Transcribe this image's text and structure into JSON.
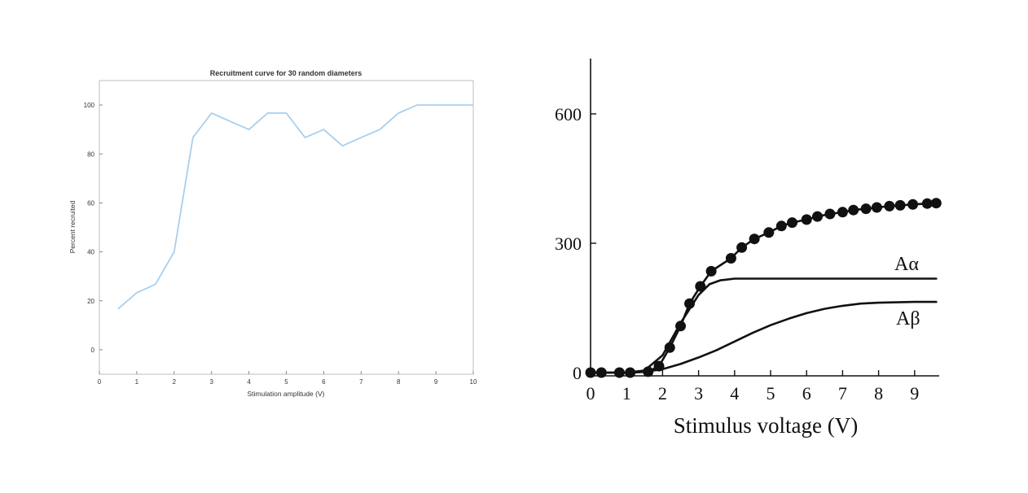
{
  "chart_data": [
    {
      "type": "line",
      "title": "Recruitment curve for 30 random diameters",
      "xlabel": "Stimulation amplitude (V)",
      "ylabel": "Percent recruited",
      "xlim": [
        0,
        10
      ],
      "ylim": [
        -10,
        110
      ],
      "xticks": [
        0,
        1,
        2,
        3,
        4,
        5,
        6,
        7,
        8,
        9,
        10
      ],
      "yticks": [
        0,
        20,
        40,
        60,
        80,
        100
      ],
      "grid": false,
      "colors": {
        "line": "#a8cfee",
        "axis": "#8a8a8a",
        "frame": "#bdbdbd"
      },
      "series": [
        {
          "x": [
            0.5,
            1,
            1.5,
            2,
            2.5,
            3,
            3.5,
            4,
            4.5,
            5,
            5.5,
            6,
            6.5,
            7,
            7.5,
            8,
            8.5,
            9,
            9.5,
            10
          ],
          "y": [
            16.7,
            23.3,
            26.7,
            40,
            86.7,
            96.7,
            93.3,
            90,
            96.7,
            96.7,
            86.7,
            90,
            83.3,
            86.7,
            90,
            96.7,
            100,
            100,
            100,
            100
          ]
        }
      ]
    },
    {
      "type": "line",
      "title": "",
      "xlabel": "Stimulus voltage (V)",
      "ylabel": "",
      "xlim": [
        0,
        9.6
      ],
      "ylim": [
        0,
        720
      ],
      "xticks": [
        0,
        1,
        2,
        3,
        4,
        5,
        6,
        7,
        8,
        9
      ],
      "yticks": [
        0,
        300,
        600
      ],
      "grid": false,
      "colors": {
        "ink": "#111111"
      },
      "series": [
        {
          "style": "dots-with-line",
          "x": [
            0,
            0.3,
            0.8,
            1.1,
            1.6,
            1.9,
            2.2,
            2.5,
            2.75,
            3.05,
            3.35,
            3.9,
            4.2,
            4.55,
            4.95,
            5.3,
            5.6,
            6.0,
            6.3,
            6.65,
            7.0,
            7.3,
            7.65,
            7.95,
            8.3,
            8.6,
            8.95,
            9.35,
            9.6
          ],
          "y": [
            0,
            0,
            0,
            0,
            2,
            15,
            58,
            108,
            160,
            200,
            235,
            265,
            290,
            310,
            325,
            340,
            348,
            355,
            362,
            368,
            372,
            377,
            380,
            383,
            386,
            388,
            390,
            392,
            393
          ]
        },
        {
          "name": "Aα",
          "x": [
            0,
            1,
            1.5,
            2,
            2.5,
            3,
            3.3,
            3.6,
            4.0,
            4.5,
            5,
            6,
            7,
            8,
            9,
            9.6
          ],
          "y": [
            0,
            0,
            5,
            40,
            115,
            180,
            205,
            214,
            218,
            218,
            218,
            218,
            218,
            218,
            218,
            218
          ]
        },
        {
          "name": "Aβ",
          "x": [
            0,
            1.2,
            1.6,
            2,
            2.5,
            3,
            3.5,
            4,
            4.5,
            5,
            5.5,
            6,
            6.5,
            7,
            7.5,
            8,
            8.5,
            9,
            9.6
          ],
          "y": [
            0,
            0,
            3,
            8,
            20,
            35,
            52,
            72,
            92,
            110,
            125,
            138,
            148,
            155,
            160,
            162,
            163,
            164,
            164
          ]
        }
      ]
    }
  ]
}
